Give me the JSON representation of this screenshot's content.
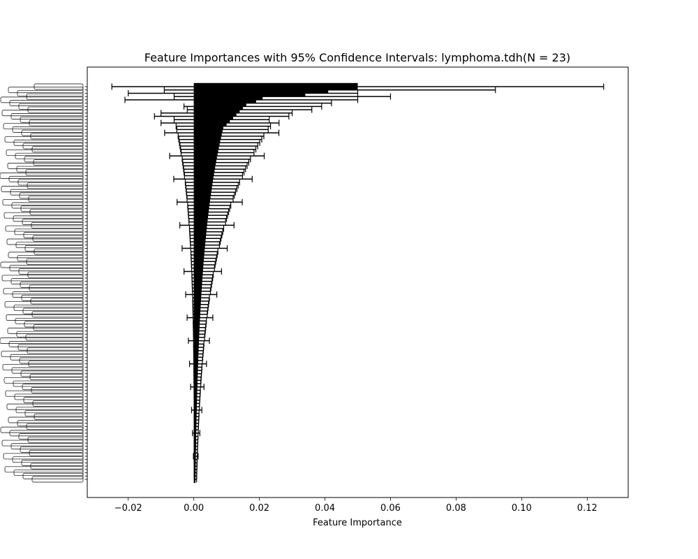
{
  "chart_data": {
    "type": "bar",
    "orientation": "horizontal",
    "title": "Feature Importances with 95% Confidence Intervals: lymphoma.tdh(N = 23)",
    "xlabel": "Feature Importance",
    "ylabel": "",
    "xlim": [
      -0.0325,
      0.1325
    ],
    "xticks": [
      -0.02,
      0.0,
      0.02,
      0.04,
      0.06,
      0.08,
      0.1,
      0.12
    ],
    "xtick_labels": [
      "−0.02",
      "0.00",
      "0.02",
      "0.04",
      "0.06",
      "0.08",
      "0.10",
      "0.12"
    ],
    "n_features": 120,
    "feature_labels_legible": false,
    "grid": false,
    "legend": "none",
    "bar_color": "#000000",
    "values_head": [
      0.05,
      0.041,
      0.034,
      0.021,
      0.019,
      0.016,
      0.015,
      0.014,
      0.013,
      0.012,
      0.011,
      0.01
    ],
    "ci_head": [
      [
        -0.025,
        0.125
      ],
      [
        -0.009,
        0.092
      ],
      [
        -0.02,
        0.05
      ],
      [
        -0.006,
        0.06
      ],
      [
        -0.021,
        0.05
      ],
      [
        0.004,
        0.042
      ],
      [
        -0.003,
        0.039
      ],
      [
        -0.002,
        0.036
      ],
      [
        -0.01,
        0.03
      ],
      [
        -0.012,
        0.029
      ],
      [
        -0.006,
        0.023
      ],
      [
        -0.01,
        0.026
      ]
    ],
    "value_tail_start": 0.009,
    "value_tail_end": 0.0005
  }
}
